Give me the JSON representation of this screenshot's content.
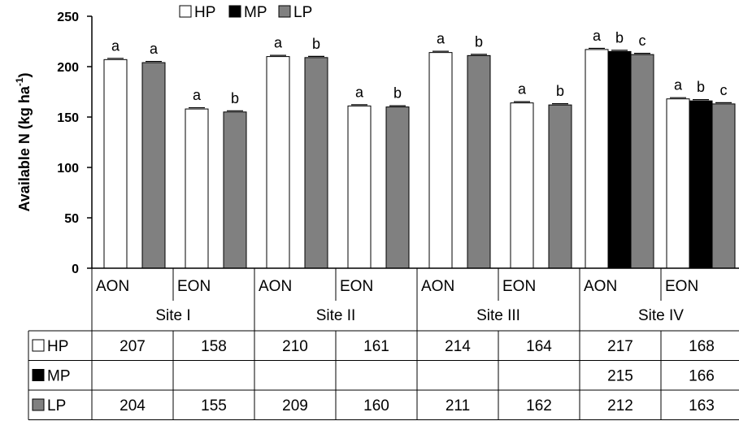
{
  "chart_data": {
    "type": "bar",
    "ylabel_main": "Available N (kg ha",
    "ylabel_sup": "-1",
    "ylabel_close": ")",
    "ylim": [
      0,
      250
    ],
    "yticks": [
      "0",
      "50",
      "100",
      "150",
      "200",
      "250"
    ],
    "legend_position": "top",
    "series": [
      {
        "name": "HP",
        "color": "#ffffff"
      },
      {
        "name": "MP",
        "color": "#000000"
      },
      {
        "name": "LP",
        "color": "#808080"
      }
    ],
    "groups": [
      {
        "site": "Site I",
        "category": "AON",
        "bars": [
          {
            "series": "HP",
            "value": 207,
            "label": "a"
          },
          {
            "series": "LP",
            "value": 204,
            "label": "a"
          }
        ]
      },
      {
        "site": "Site I",
        "category": "EON",
        "bars": [
          {
            "series": "HP",
            "value": 158,
            "label": "a"
          },
          {
            "series": "LP",
            "value": 155,
            "label": "b"
          }
        ]
      },
      {
        "site": "Site II",
        "category": "AON",
        "bars": [
          {
            "series": "HP",
            "value": 210,
            "label": "a"
          },
          {
            "series": "LP",
            "value": 209,
            "label": "b"
          }
        ]
      },
      {
        "site": "Site II",
        "category": "EON",
        "bars": [
          {
            "series": "HP",
            "value": 161,
            "label": "a"
          },
          {
            "series": "LP",
            "value": 160,
            "label": "b"
          }
        ]
      },
      {
        "site": "Site III",
        "category": "AON",
        "bars": [
          {
            "series": "HP",
            "value": 214,
            "label": "a"
          },
          {
            "series": "LP",
            "value": 211,
            "label": "b"
          }
        ]
      },
      {
        "site": "Site III",
        "category": "EON",
        "bars": [
          {
            "series": "HP",
            "value": 164,
            "label": "a"
          },
          {
            "series": "LP",
            "value": 162,
            "label": "b"
          }
        ]
      },
      {
        "site": "Site IV",
        "category": "AON",
        "bars": [
          {
            "series": "HP",
            "value": 217,
            "label": "a"
          },
          {
            "series": "MP",
            "value": 215,
            "label": "b"
          },
          {
            "series": "LP",
            "value": 212,
            "label": "c"
          }
        ]
      },
      {
        "site": "Site IV",
        "category": "EON",
        "bars": [
          {
            "series": "HP",
            "value": 168,
            "label": "a"
          },
          {
            "series": "MP",
            "value": 166,
            "label": "b"
          },
          {
            "series": "LP",
            "value": 163,
            "label": "c"
          }
        ]
      }
    ],
    "sites": [
      "Site I",
      "Site II",
      "Site III",
      "Site IV"
    ],
    "table": {
      "rows": [
        {
          "series": "HP",
          "values": [
            "207",
            "158",
            "210",
            "161",
            "214",
            "164",
            "217",
            "168"
          ]
        },
        {
          "series": "MP",
          "values": [
            "",
            "",
            "",
            "",
            "",
            "",
            "215",
            "166"
          ]
        },
        {
          "series": "LP",
          "values": [
            "204",
            "155",
            "209",
            "160",
            "211",
            "162",
            "212",
            "163"
          ]
        }
      ]
    }
  }
}
